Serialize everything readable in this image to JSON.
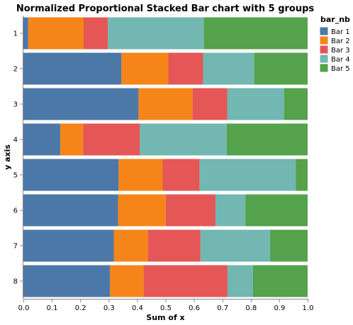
{
  "chart_data": {
    "type": "bar",
    "orientation": "horizontal",
    "stacked": "normalized",
    "title": "Normalized Proportional Stacked Bar chart with 5 groups",
    "xlabel": "Sum of x",
    "ylabel": "y axis",
    "xlim": [
      0,
      1
    ],
    "x_ticks": [
      "0.0",
      "0.1",
      "0.2",
      "0.3",
      "0.4",
      "0.5",
      "0.6",
      "0.7",
      "0.8",
      "0.9",
      "1.0"
    ],
    "categories": [
      "1",
      "2",
      "3",
      "4",
      "5",
      "6",
      "7",
      "8"
    ],
    "legend_title": "bar_nb",
    "legend_position": "right",
    "grid": false,
    "series": [
      {
        "name": "Bar 1",
        "color": "#4c78a8",
        "values": [
          0.017,
          0.345,
          0.405,
          0.13,
          0.335,
          0.333,
          0.318,
          0.305
        ]
      },
      {
        "name": "Bar 2",
        "color": "#f58518",
        "values": [
          0.195,
          0.165,
          0.19,
          0.08,
          0.155,
          0.168,
          0.12,
          0.118
        ]
      },
      {
        "name": "Bar 3",
        "color": "#e45756",
        "values": [
          0.085,
          0.122,
          0.122,
          0.2,
          0.13,
          0.175,
          0.185,
          0.295
        ]
      },
      {
        "name": "Bar 4",
        "color": "#72b7b2",
        "values": [
          0.338,
          0.18,
          0.2,
          0.305,
          0.338,
          0.105,
          0.245,
          0.09
        ]
      },
      {
        "name": "Bar 5",
        "color": "#54a24b",
        "values": [
          0.365,
          0.188,
          0.083,
          0.285,
          0.042,
          0.219,
          0.132,
          0.192
        ]
      }
    ]
  }
}
